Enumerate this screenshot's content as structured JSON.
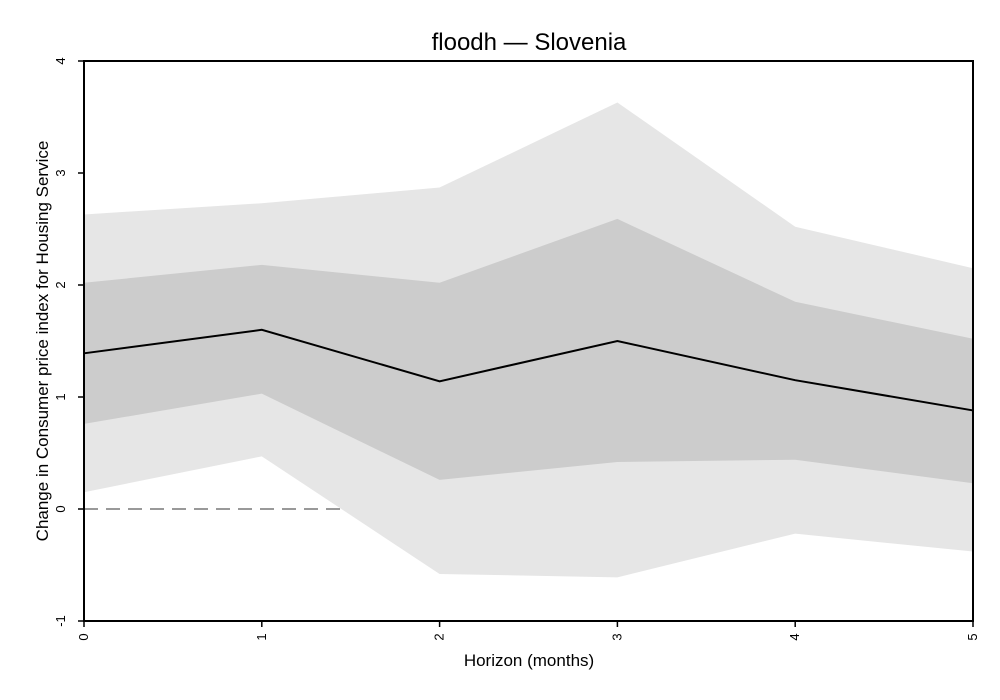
{
  "chart_data": {
    "type": "line",
    "title": "floodh — Slovenia",
    "xlabel": "Horizon (months)",
    "ylabel": "Change in Consumer price index for Housing Service",
    "x": [
      0,
      1,
      2,
      3,
      4,
      5
    ],
    "xlim": [
      0,
      5
    ],
    "ylim": [
      -1,
      4
    ],
    "xticks": [
      "0",
      "1",
      "2",
      "3",
      "4",
      "5"
    ],
    "yticks": [
      "-1",
      "0",
      "1",
      "2",
      "3",
      "4"
    ],
    "grid": false,
    "legend": "none",
    "series": [
      {
        "role": "point_estimate",
        "values": [
          1.39,
          1.6,
          1.14,
          1.5,
          1.15,
          0.88
        ]
      }
    ],
    "bands": [
      {
        "role": "outer_interval",
        "lower": [
          0.15,
          0.47,
          -0.58,
          -0.61,
          -0.22,
          -0.38
        ],
        "upper": [
          2.63,
          2.73,
          2.87,
          3.63,
          2.52,
          2.15
        ]
      },
      {
        "role": "inner_interval",
        "lower": [
          0.76,
          1.03,
          0.26,
          0.42,
          0.44,
          0.23
        ],
        "upper": [
          2.02,
          2.18,
          2.02,
          2.59,
          1.85,
          1.52
        ]
      }
    ],
    "reference_line": {
      "y": 0,
      "x_start": 0,
      "x_end": 1.45,
      "style": "dashed"
    },
    "colors": {
      "outer_band": "#e6e6e6",
      "inner_band": "#cccccc",
      "line": "#000000",
      "reference": "#999999",
      "frame": "#000000"
    }
  }
}
